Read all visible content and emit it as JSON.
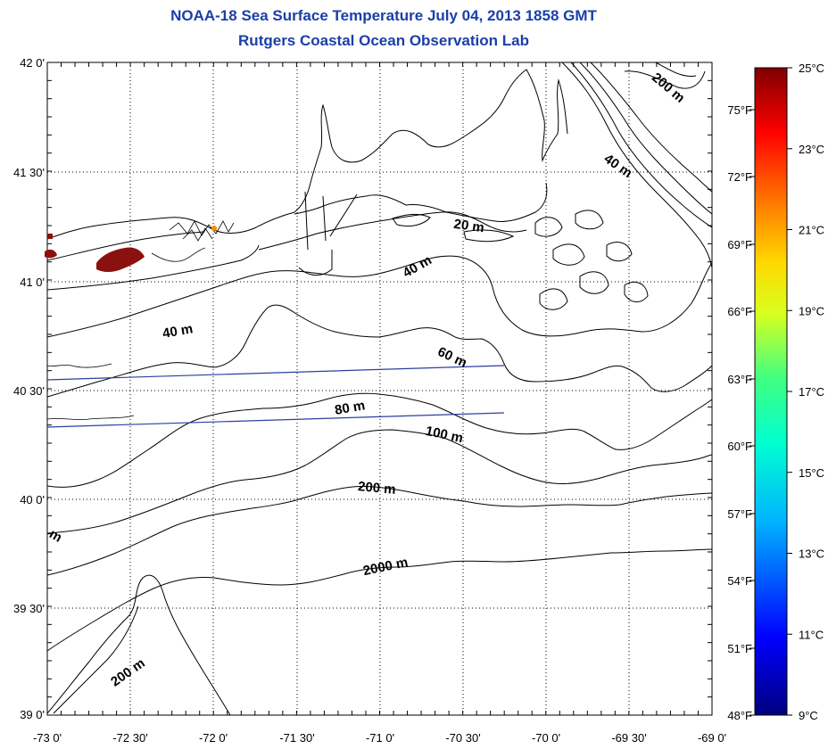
{
  "header": {
    "title": "NOAA-18 Sea Surface Temperature July 04, 2013 1858 GMT",
    "subtitle": "Rutgers Coastal Ocean Observation Lab"
  },
  "map": {
    "lat_labels": [
      "42 0'",
      "41 30'",
      "41 0'",
      "40 30'",
      "40 0'",
      "39 30'",
      "39 0'"
    ],
    "lon_labels": [
      "-73 0'",
      "-72 30'",
      "-72 0'",
      "-71 30'",
      "-71 0'",
      "-70 30'",
      "-70 0'",
      "-69 30'",
      "-69 0'"
    ],
    "contour_labels": [
      "200 m",
      "40 m",
      "20 m",
      "40 m",
      "40 m",
      "60 m",
      "80 m",
      "100 m",
      "200 m",
      "2000 m",
      "200 m",
      "m"
    ]
  },
  "colorbar": {
    "celsius_labels": [
      "25°C",
      "23°C",
      "21°C",
      "19°C",
      "17°C",
      "15°C",
      "13°C",
      "11°C",
      "9°C"
    ],
    "fahrenheit_labels": [
      "75°F",
      "72°F",
      "69°F",
      "66°F",
      "63°F",
      "60°F",
      "57°F",
      "54°F",
      "51°F",
      "48°F"
    ]
  },
  "colors": {
    "title": "#1a3fa8",
    "track_line": "#2a3fa0",
    "warm_sst": "#8b1010"
  }
}
